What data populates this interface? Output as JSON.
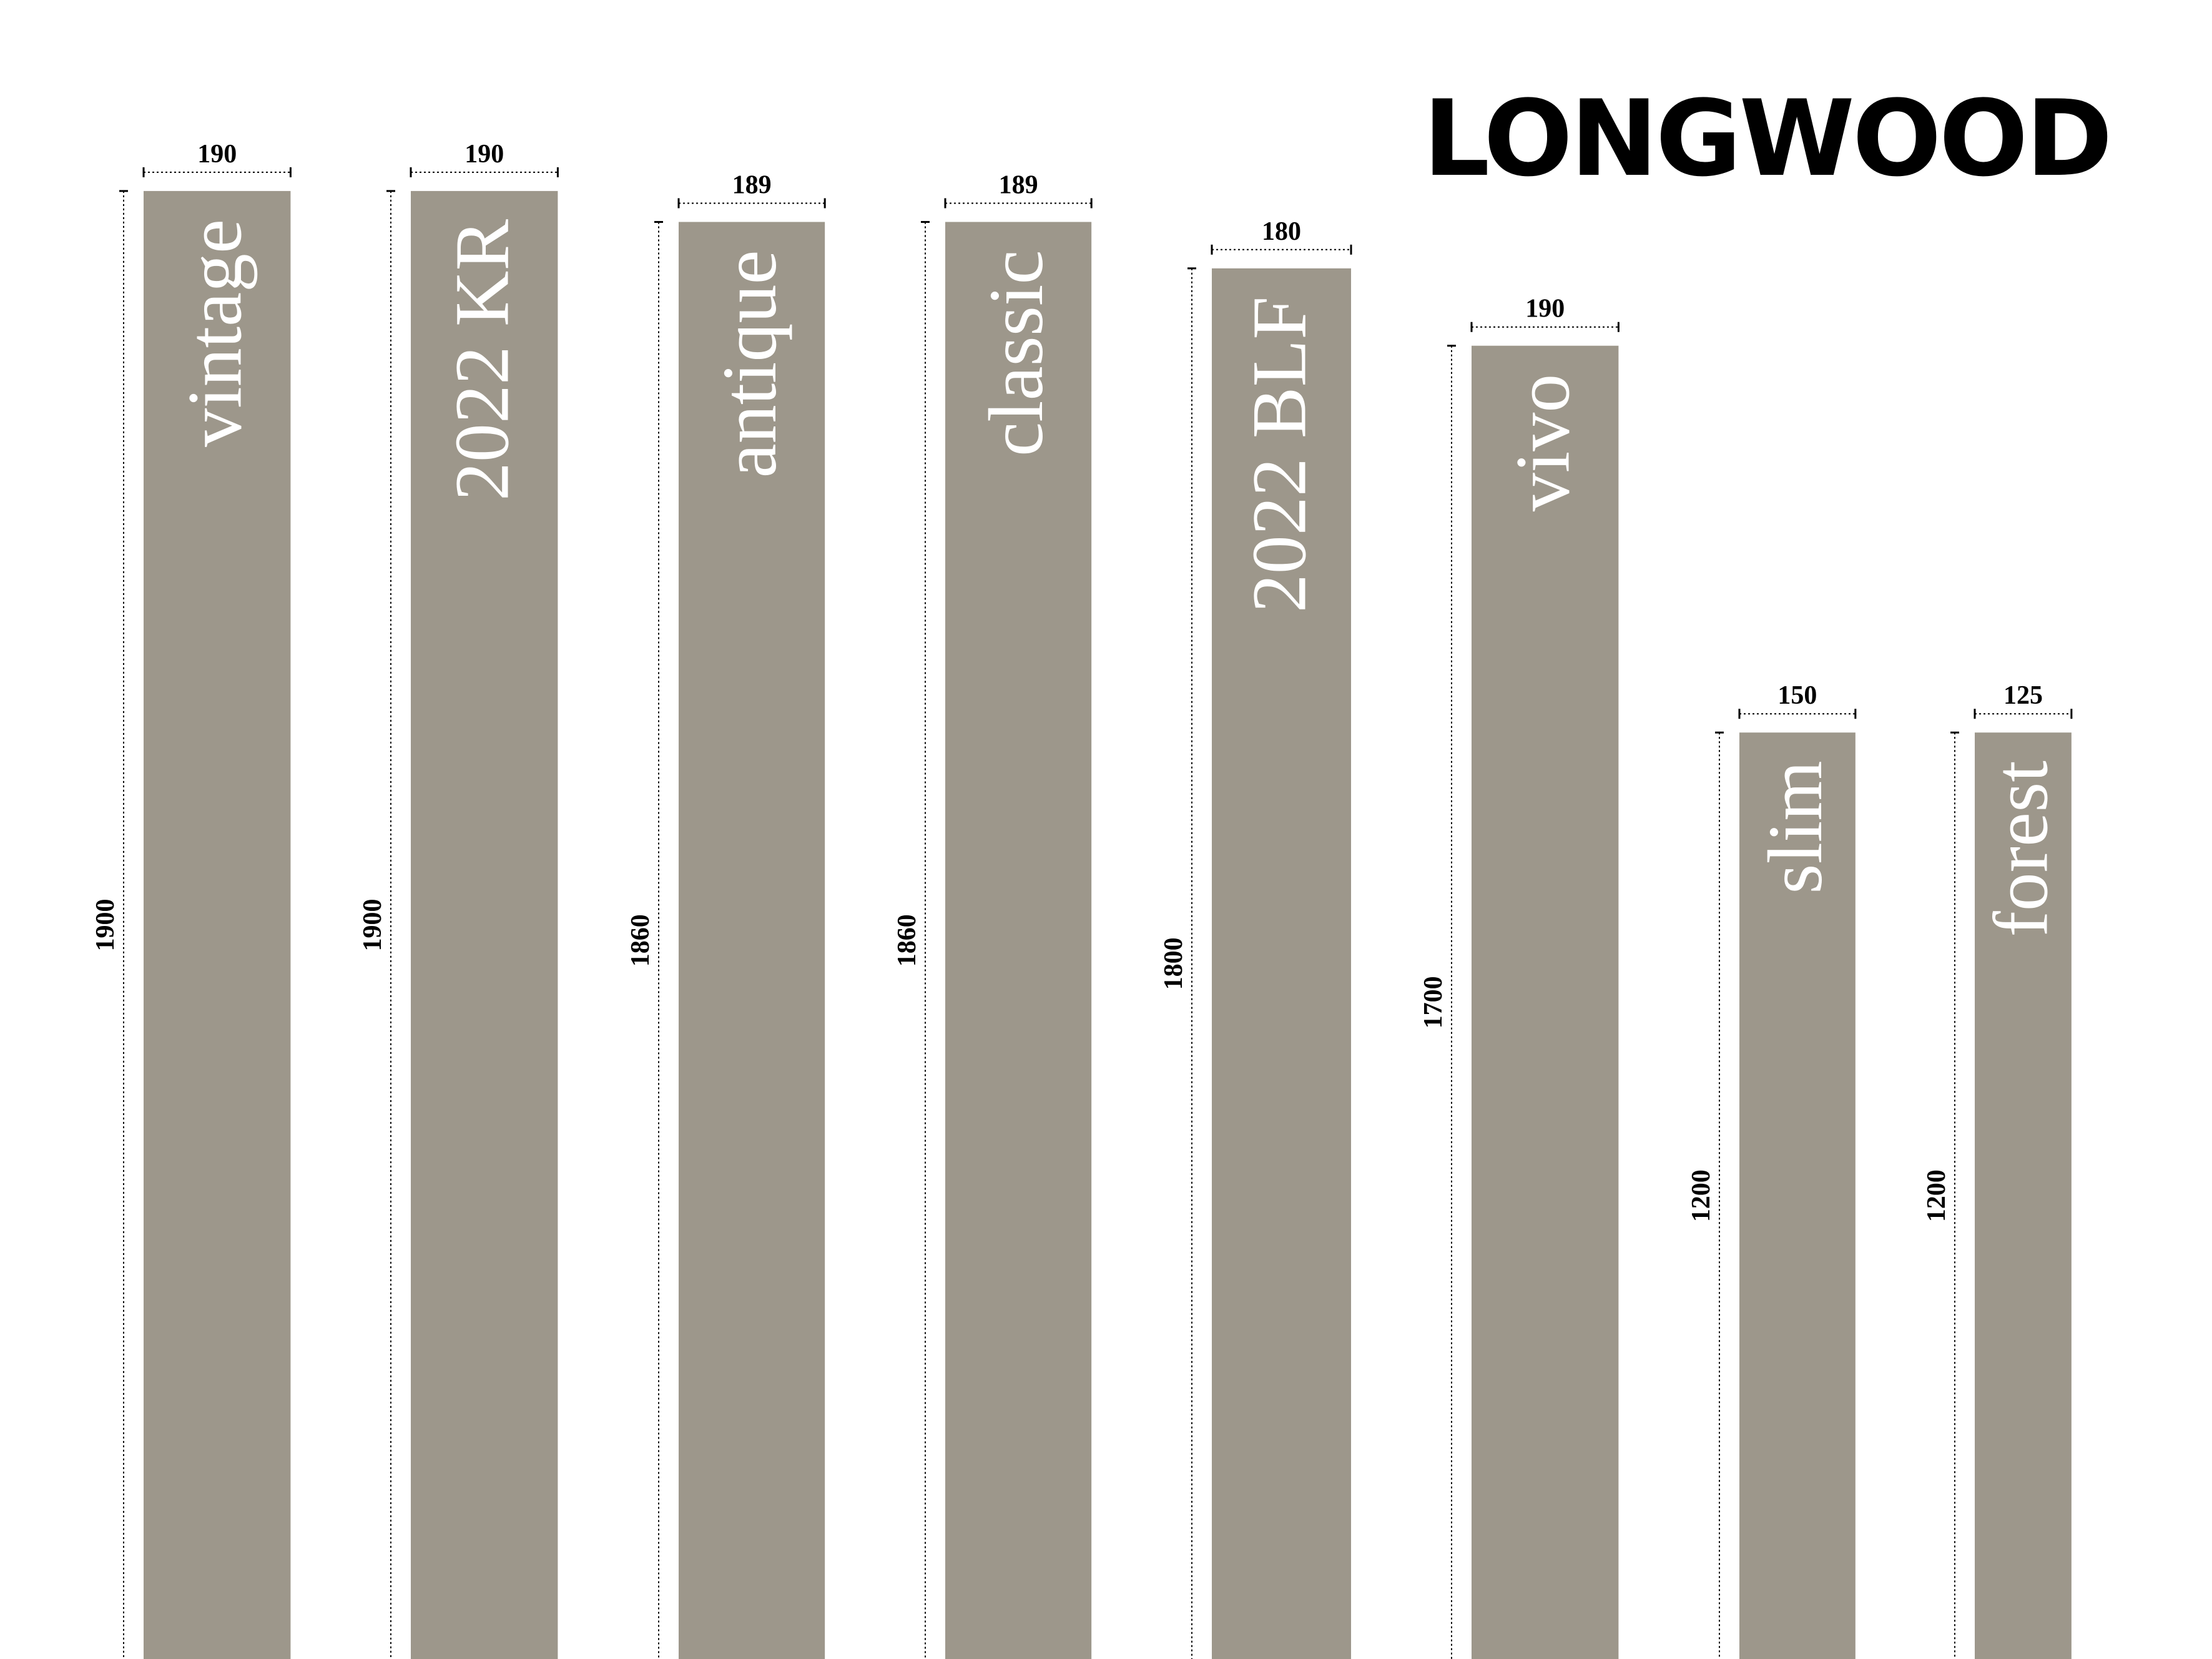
{
  "brand": "LONGWOOD",
  "colors": {
    "plank": "#9d978b",
    "text_on_plank": "#ffffff",
    "dimension": "#000000"
  },
  "units": "mm",
  "planks": [
    {
      "name": "vintage",
      "width": 190,
      "length": 1900,
      "width_label": "190",
      "length_label": "1900"
    },
    {
      "name": "2022 KR",
      "width": 190,
      "length": 1900,
      "width_label": "190",
      "length_label": "1900"
    },
    {
      "name": "antique",
      "width": 189,
      "length": 1860,
      "width_label": "189",
      "length_label": "1860"
    },
    {
      "name": "classic",
      "width": 189,
      "length": 1860,
      "width_label": "189",
      "length_label": "1860"
    },
    {
      "name": "2022 BLF",
      "width": 180,
      "length": 1800,
      "width_label": "180",
      "length_label": "1800"
    },
    {
      "name": "vivo",
      "width": 190,
      "length": 1700,
      "width_label": "190",
      "length_label": "1700"
    },
    {
      "name": "slim",
      "width": 150,
      "length": 1200,
      "width_label": "150",
      "length_label": "1200"
    },
    {
      "name": "forest",
      "width": 125,
      "length": 1200,
      "width_label": "125",
      "length_label": "1200"
    }
  ]
}
